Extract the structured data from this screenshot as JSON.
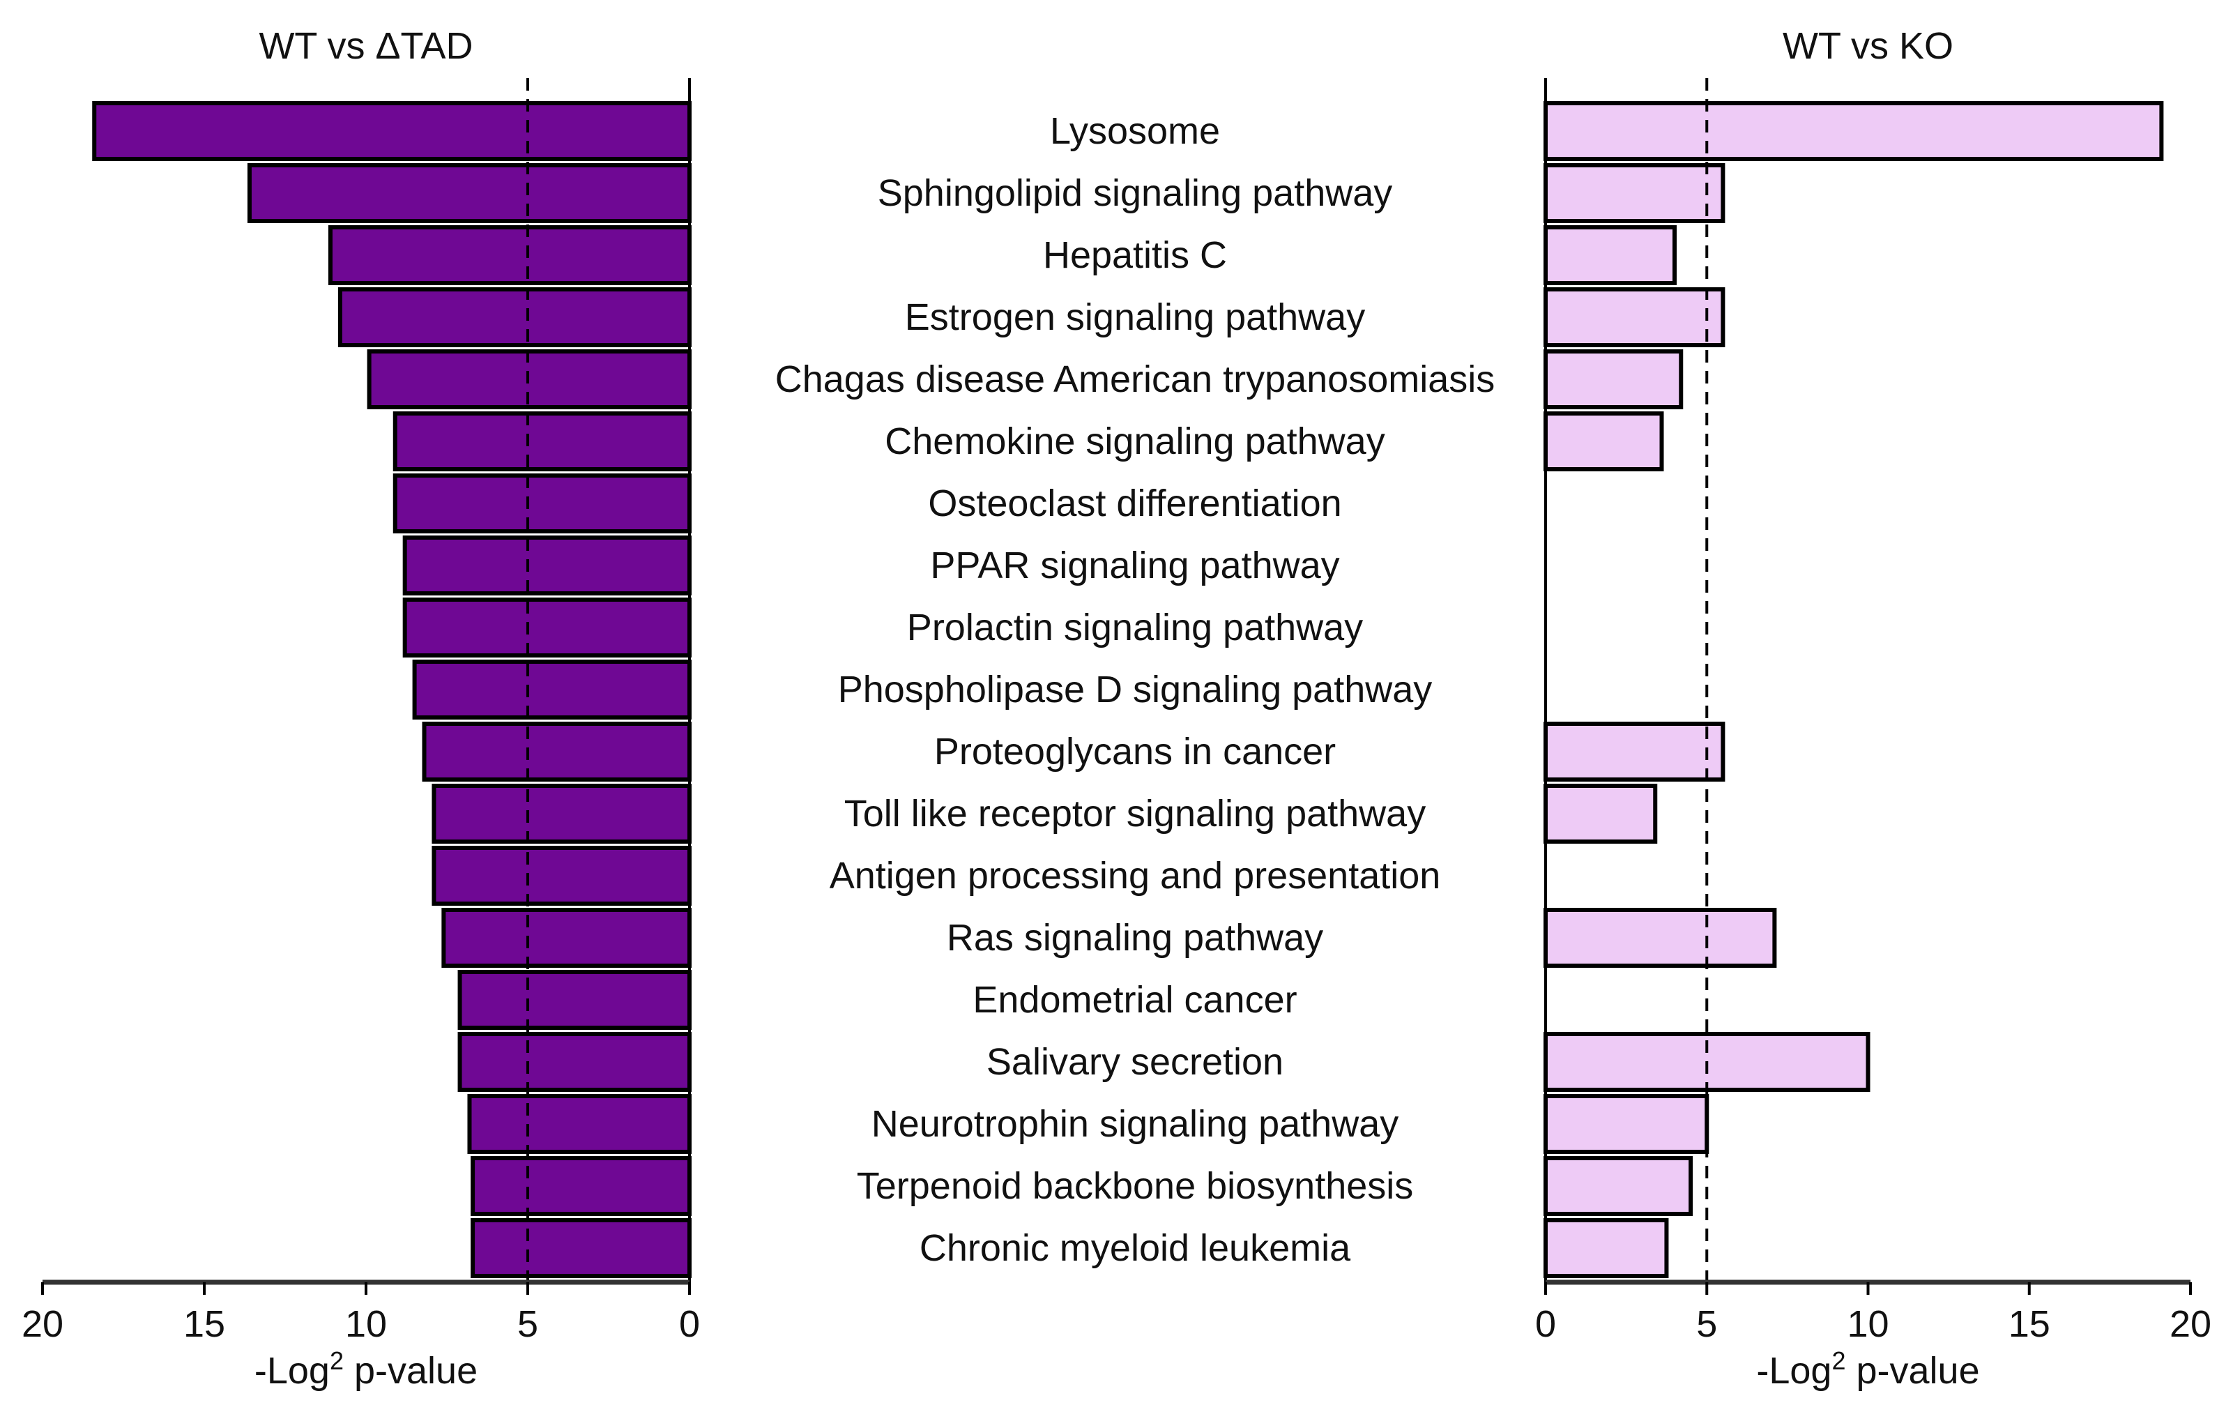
{
  "chart_data": [
    {
      "type": "bar",
      "orientation": "horizontal",
      "title": "WT vs ΔTAD",
      "xlabel_prefix": "-Log",
      "xlabel_sup": "2",
      "xlabel_suffix": " p-value",
      "xlim": [
        20,
        0
      ],
      "x_reversed": true,
      "xticks": [
        "20",
        "15",
        "10",
        "5",
        "0"
      ],
      "xtick_values": [
        20,
        15,
        10,
        5,
        0
      ],
      "threshold": 5,
      "color": "#6f0894",
      "categories": [
        "Lysosome",
        "Sphingolipid signaling pathway",
        "Hepatitis C",
        "Estrogen signaling pathway",
        "Chagas disease American trypanosomiasis",
        "Chemokine signaling pathway",
        "Osteoclast differentiation",
        "PPAR signaling pathway",
        "Prolactin signaling pathway",
        "Phospholipase D signaling pathway",
        "Proteoglycans in cancer",
        "Toll like receptor signaling pathway",
        "Antigen processing and presentation",
        "Ras signaling pathway",
        "Endometrial cancer",
        "Salivary secretion",
        "Neurotrophin signaling pathway",
        "Terpenoid backbone biosynthesis",
        "Chronic myeloid leukemia"
      ],
      "values": [
        18.4,
        13.6,
        11.1,
        10.8,
        9.9,
        9.1,
        9.1,
        8.8,
        8.8,
        8.5,
        8.2,
        7.9,
        7.9,
        7.6,
        7.1,
        7.1,
        6.8,
        6.7,
        6.7
      ]
    },
    {
      "type": "bar",
      "orientation": "horizontal",
      "title": "WT vs KO",
      "xlabel_prefix": "-Log",
      "xlabel_sup": "2",
      "xlabel_suffix": " p-value",
      "xlim": [
        0,
        20
      ],
      "xticks": [
        "0",
        "5",
        "10",
        "15",
        "20"
      ],
      "xtick_values": [
        0,
        5,
        10,
        15,
        20
      ],
      "threshold": 5,
      "color": "#eecbf6",
      "categories": [
        "Lysosome",
        "Sphingolipid signaling pathway",
        "Hepatitis C",
        "Estrogen signaling pathway",
        "Chagas disease American trypanosomiasis",
        "Chemokine signaling pathway",
        "Osteoclast differentiation",
        "PPAR signaling pathway",
        "Prolactin signaling pathway",
        "Phospholipase D signaling pathway",
        "Proteoglycans in cancer",
        "Toll like receptor signaling pathway",
        "Antigen processing and presentation",
        "Ras signaling pathway",
        "Endometrial cancer",
        "Salivary secretion",
        "Neurotrophin signaling pathway",
        "Terpenoid backbone biosynthesis",
        "Chronic myeloid leukemia"
      ],
      "values": [
        19.1,
        5.5,
        4.0,
        5.5,
        4.2,
        3.6,
        null,
        null,
        null,
        null,
        5.5,
        3.4,
        null,
        7.1,
        null,
        10.0,
        5.0,
        4.5,
        3.75
      ]
    }
  ]
}
